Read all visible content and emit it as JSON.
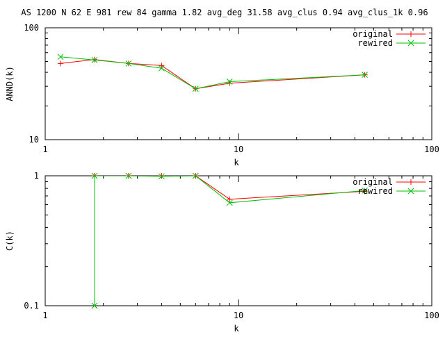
{
  "title": "AS 1200 N 62 E 981 rew 84 gamma 1.82 avg_deg 31.58 avg_clus 0.94 avg_clus_1k 0.96",
  "colors": {
    "original": "#ff0000",
    "rewired": "#00c000",
    "axes": "#000000"
  },
  "chart_data": [
    {
      "type": "line",
      "xscale": "log",
      "yscale": "log",
      "xlim": [
        1,
        100
      ],
      "ylim": [
        10,
        100
      ],
      "xlabel": "k",
      "ylabel": "ANND(k)",
      "xticks": [
        1,
        10,
        100
      ],
      "xtick_labels": [
        "1",
        "10",
        "100"
      ],
      "yticks": [
        10,
        100
      ],
      "ytick_labels": [
        "10",
        "100"
      ],
      "grid": false,
      "legend": "top-right",
      "series": [
        {
          "name": "original",
          "marker": "plus",
          "color": "#ff0000",
          "x": [
            1.2,
            1.8,
            2.7,
            4.0,
            6.0,
            9.0,
            45.0
          ],
          "y": [
            48,
            52,
            48,
            46,
            28.5,
            32,
            38
          ]
        },
        {
          "name": "rewired",
          "marker": "cross",
          "color": "#00c000",
          "x": [
            1.2,
            1.8,
            2.7,
            4.0,
            6.0,
            9.0,
            45.0
          ],
          "y": [
            55,
            51.5,
            48,
            43.5,
            28.5,
            33,
            38
          ]
        }
      ]
    },
    {
      "type": "line",
      "xscale": "log",
      "yscale": "log",
      "xlim": [
        1,
        100
      ],
      "ylim": [
        0.1,
        1
      ],
      "xlabel": "k",
      "ylabel": "C(k)",
      "xticks": [
        1,
        10,
        100
      ],
      "xtick_labels": [
        "1",
        "10",
        "100"
      ],
      "yticks": [
        0.1,
        1
      ],
      "ytick_labels": [
        "0.1",
        "1"
      ],
      "grid": false,
      "legend": "top-right",
      "series": [
        {
          "name": "original",
          "marker": "plus",
          "color": "#ff0000",
          "x": [
            1.8,
            2.7,
            4.0,
            6.0,
            9.0,
            45.0
          ],
          "y": [
            1.0,
            1.0,
            1.0,
            1.0,
            0.66,
            0.76
          ]
        },
        {
          "name": "rewired",
          "marker": "cross",
          "color": "#00c000",
          "x": [
            1.8,
            1.8,
            2.7,
            4.0,
            6.0,
            9.0,
            45.0
          ],
          "y": [
            0.1,
            1.0,
            1.0,
            0.99,
            1.0,
            0.62,
            0.77
          ]
        }
      ]
    }
  ]
}
